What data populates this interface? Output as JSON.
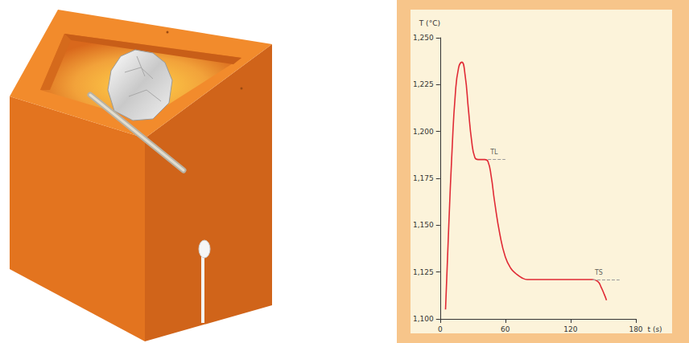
{
  "chart_data": {
    "type": "line",
    "x_label": "t (s)",
    "y_label": "T (°C)",
    "color": "#e02a35",
    "x": [
      5,
      8,
      11,
      14,
      17,
      20,
      23,
      26,
      29,
      32,
      35,
      38,
      41,
      44,
      47,
      50,
      55,
      60,
      65,
      70,
      75,
      80,
      90,
      100,
      110,
      120,
      130,
      140,
      145,
      148,
      151,
      153
    ],
    "values": [
      1105,
      1150,
      1190,
      1220,
      1234,
      1237,
      1230,
      1212,
      1195,
      1186,
      1185,
      1185,
      1185,
      1184,
      1176,
      1163,
      1145,
      1133,
      1127,
      1124,
      1122,
      1121,
      1121,
      1121,
      1121,
      1121,
      1121,
      1121,
      1120,
      1117,
      1113,
      1110
    ],
    "xlim": [
      0,
      180
    ],
    "xticks": [
      0,
      60,
      120,
      180
    ],
    "ylim": [
      1100,
      1250
    ],
    "yticks": [
      1100,
      1125,
      1150,
      1175,
      1200,
      1225,
      1250
    ],
    "grid": false,
    "annotations": [
      {
        "text": "TL",
        "x": [
          44,
          60
        ],
        "y": 1185
      },
      {
        "text": "TS",
        "x": [
          140,
          165
        ],
        "y": 1121
      }
    ]
  }
}
